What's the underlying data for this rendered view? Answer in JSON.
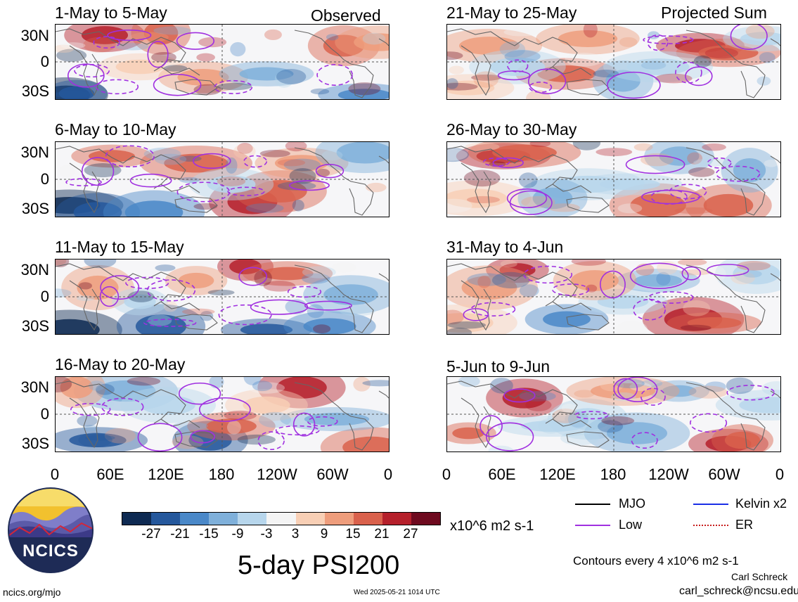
{
  "observed_label": "Observed",
  "projected_label": "Projected Sum",
  "panels_left": [
    {
      "title": "1-May to 5-May"
    },
    {
      "title": "6-May to 10-May"
    },
    {
      "title": "11-May to 15-May"
    },
    {
      "title": "16-May to 20-May"
    }
  ],
  "panels_right": [
    {
      "title": "21-May to 25-May"
    },
    {
      "title": "26-May to 30-May"
    },
    {
      "title": "31-May to 4-Jun"
    },
    {
      "title": "5-Jun to 9-Jun"
    }
  ],
  "lat_labels": [
    "30N",
    "0",
    "30S"
  ],
  "lon_labels": [
    "0",
    "60E",
    "120E",
    "180",
    "120W",
    "60W",
    "0"
  ],
  "colorbar": {
    "ticks": [
      "-27",
      "-21",
      "-15",
      "-9",
      "-3",
      "3",
      "9",
      "15",
      "21",
      "27"
    ],
    "units": "x10^6 m2 s-1",
    "colors": [
      "#0e2a52",
      "#25589c",
      "#4a88c8",
      "#7fb0da",
      "#b7d6ec",
      "#f4f4f4",
      "#f8cfb5",
      "#ee9d7c",
      "#d9614c",
      "#b5202b",
      "#6e0a1f"
    ]
  },
  "legend": {
    "mjo": {
      "label": "MJO",
      "color": "#000000"
    },
    "low": {
      "label": "Low",
      "color": "#a030e0"
    },
    "kelvin": {
      "label": "Kelvin x2",
      "color": "#1a2ee6"
    },
    "er": {
      "label": "ER",
      "color": "#c81e1e"
    }
  },
  "contours_note": "Contours every 4 x10^6 m2 s-1",
  "main_title": "5-day PSI200",
  "logo_text": "NCICS",
  "footer": {
    "site": "ncics.org/mjo",
    "timestamp": "Wed 2025-05-21 1014 UTC",
    "author": "Carl Schreck",
    "email": "carl_schreck@ncsu.edu"
  }
}
